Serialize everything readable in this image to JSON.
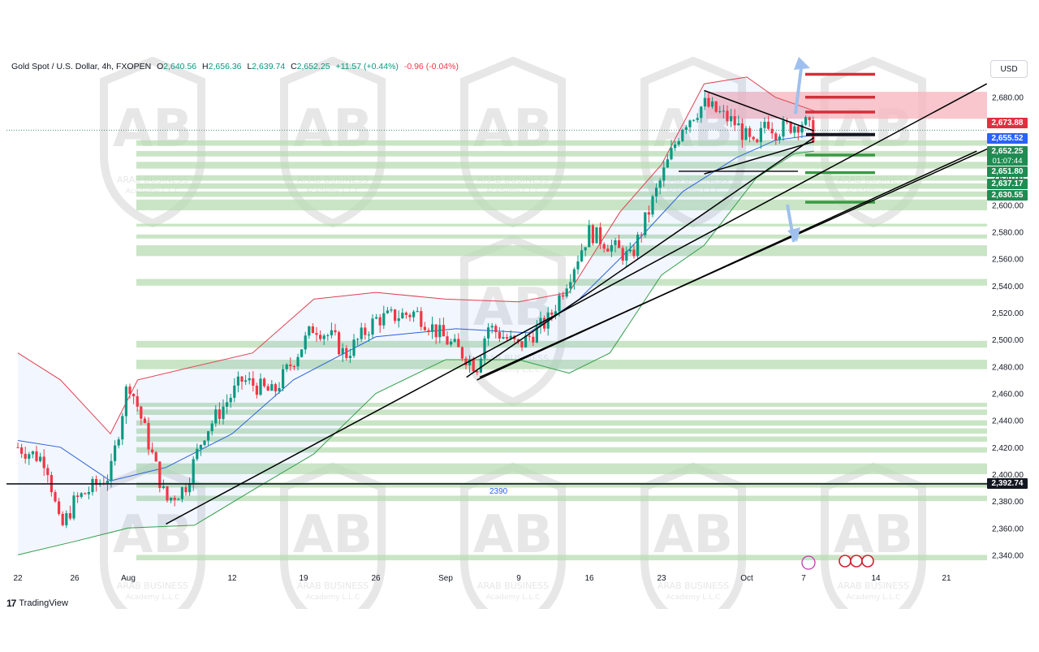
{
  "header": {
    "symbol": "Gold Spot / U.S. Dollar, 4h, FXOPEN",
    "open_label": "O",
    "open": "2,640.56",
    "high_label": "H",
    "high": "2,656.36",
    "low_label": "L",
    "low": "2,639.74",
    "close_label": "C",
    "close": "2,652.25",
    "change": "+11.57 (+0.44%)",
    "spread": "-0.96 (-0.04%)"
  },
  "currency_button": "USD",
  "price_tags": [
    {
      "value": "2,673.88",
      "color": "#e03040"
    },
    {
      "value": "2,655.52",
      "color": "#2962ff"
    },
    {
      "value": "2,652.25",
      "color": "#1f8c52"
    },
    {
      "value": "2,651.80",
      "color": "#1f8c52"
    },
    {
      "value": "2,637.17",
      "color": "#1f8c52"
    },
    {
      "value": "2,630.55",
      "color": "#1f8c52"
    },
    {
      "value": "2,392.74",
      "color": "#131722"
    }
  ],
  "countdown": "01:07:44",
  "level_label": "2390",
  "watermark": {
    "logo": "AB",
    "line1": "ARAB BUSINESS",
    "line2": "Academy L.L.C"
  },
  "branding": "TradingView",
  "colors": {
    "up": "#089981",
    "down": "#f23645",
    "bb_upper": "#e04050",
    "bb_lower": "#33a04a",
    "bb_basis": "#2a62d9",
    "support_zone": "#b7dcb2",
    "resistance_zone": "#f6b8bf"
  },
  "chart_data": {
    "type": "candlestick",
    "title": "Gold Spot / U.S. Dollar, 4h, FXOPEN",
    "timeframe": "4h",
    "ylim": [
      2330,
      2710
    ],
    "y_ticks": [
      2340,
      2360,
      2380,
      2400,
      2420,
      2440,
      2460,
      2480,
      2500,
      2520,
      2540,
      2560,
      2580,
      2600,
      2620,
      2640,
      2660,
      2680,
      2700
    ],
    "y_tick_labels": [
      "2,340.00",
      "2,360.00",
      "2,380.00",
      "2,400.00",
      "2,420.00",
      "2,440.00",
      "2,460.00",
      "2,480.00",
      "2,500.00",
      "2,520.00",
      "2,540.00",
      "2,560.00",
      "2,580.00",
      "2,600.00",
      "2,620.00",
      "2,640.00",
      "2,660.00",
      "2,680.00",
      "2,700.00"
    ],
    "x_ticks": [
      "2024-07-22",
      "2024-07-26",
      "2024-08-01",
      "2024-08-12",
      "2024-08-19",
      "2024-08-26",
      "2024-09-02",
      "2024-09-09",
      "2024-09-16",
      "2024-09-23",
      "2024-10-01",
      "2024-10-07",
      "2024-10-14",
      "2024-10-21"
    ],
    "x_tick_labels": [
      "22",
      "26",
      "Aug",
      "12",
      "19",
      "26",
      "Sep",
      "9",
      "16",
      "23",
      "Oct",
      "7",
      "14",
      "21"
    ],
    "price_path": [
      [
        "2024-07-22",
        2420
      ],
      [
        "2024-07-24",
        2410
      ],
      [
        "2024-07-25",
        2358
      ],
      [
        "2024-07-26",
        2380
      ],
      [
        "2024-07-30",
        2400
      ],
      [
        "2024-08-01",
        2470
      ],
      [
        "2024-08-02",
        2450
      ],
      [
        "2024-08-05",
        2380
      ],
      [
        "2024-08-07",
        2390
      ],
      [
        "2024-08-09",
        2430
      ],
      [
        "2024-08-13",
        2470
      ],
      [
        "2024-08-16",
        2460
      ],
      [
        "2024-08-20",
        2510
      ],
      [
        "2024-08-22",
        2500
      ],
      [
        "2024-08-23",
        2488
      ],
      [
        "2024-08-26",
        2515
      ],
      [
        "2024-08-30",
        2520
      ],
      [
        "2024-09-02",
        2500
      ],
      [
        "2024-09-05",
        2480
      ],
      [
        "2024-09-06",
        2510
      ],
      [
        "2024-09-09",
        2495
      ],
      [
        "2024-09-12",
        2515
      ],
      [
        "2024-09-16",
        2580
      ],
      [
        "2024-09-18",
        2570
      ],
      [
        "2024-09-20",
        2560
      ],
      [
        "2024-09-23",
        2620
      ],
      [
        "2024-09-25",
        2660
      ],
      [
        "2024-09-27",
        2675
      ],
      [
        "2024-09-30",
        2660
      ],
      [
        "2024-10-02",
        2640
      ],
      [
        "2024-10-03",
        2665
      ],
      [
        "2024-10-04",
        2655
      ],
      [
        "2024-10-07",
        2662
      ],
      [
        "2024-10-08",
        2652
      ]
    ],
    "bollinger_upper": [
      [
        "2024-07-22",
        2490
      ],
      [
        "2024-07-25",
        2470
      ],
      [
        "2024-07-30",
        2430
      ],
      [
        "2024-08-02",
        2470
      ],
      [
        "2024-08-08",
        2480
      ],
      [
        "2024-08-14",
        2490
      ],
      [
        "2024-08-20",
        2530
      ],
      [
        "2024-08-26",
        2535
      ],
      [
        "2024-09-02",
        2530
      ],
      [
        "2024-09-09",
        2528
      ],
      [
        "2024-09-14",
        2535
      ],
      [
        "2024-09-19",
        2595
      ],
      [
        "2024-09-23",
        2630
      ],
      [
        "2024-09-27",
        2690
      ],
      [
        "2024-10-01",
        2695
      ],
      [
        "2024-10-04",
        2680
      ],
      [
        "2024-10-08",
        2670
      ]
    ],
    "bollinger_basis": [
      [
        "2024-07-22",
        2425
      ],
      [
        "2024-07-25",
        2420
      ],
      [
        "2024-07-30",
        2395
      ],
      [
        "2024-08-05",
        2405
      ],
      [
        "2024-08-12",
        2430
      ],
      [
        "2024-08-18",
        2470
      ],
      [
        "2024-08-26",
        2502
      ],
      [
        "2024-09-03",
        2508
      ],
      [
        "2024-09-10",
        2505
      ],
      [
        "2024-09-15",
        2530
      ],
      [
        "2024-09-20",
        2568
      ],
      [
        "2024-09-25",
        2610
      ],
      [
        "2024-09-30",
        2635
      ],
      [
        "2024-10-04",
        2648
      ],
      [
        "2024-10-08",
        2652
      ]
    ],
    "bollinger_lower": [
      [
        "2024-07-22",
        2340
      ],
      [
        "2024-07-26",
        2350
      ],
      [
        "2024-08-01",
        2360
      ],
      [
        "2024-08-08",
        2362
      ],
      [
        "2024-08-14",
        2388
      ],
      [
        "2024-08-20",
        2415
      ],
      [
        "2024-08-26",
        2460
      ],
      [
        "2024-09-02",
        2485
      ],
      [
        "2024-09-09",
        2485
      ],
      [
        "2024-09-14",
        2475
      ],
      [
        "2024-09-18",
        2490
      ],
      [
        "2024-09-23",
        2548
      ],
      [
        "2024-09-27",
        2570
      ],
      [
        "2024-10-02",
        2620
      ],
      [
        "2024-10-06",
        2638
      ],
      [
        "2024-10-08",
        2640
      ]
    ],
    "trendlines": [
      {
        "from": [
          "2024-08-05",
          2363
        ],
        "to": [
          "2024-10-25",
          2690
        ]
      },
      {
        "from": [
          "2024-09-04",
          2472
        ],
        "to": [
          "2024-10-08",
          2650
        ]
      },
      {
        "from": [
          "2024-09-05",
          2470
        ],
        "to": [
          "2024-10-24",
          2640
        ]
      },
      {
        "from": [
          "2024-09-27",
          2685
        ],
        "to": [
          "2024-10-08",
          2655
        ]
      },
      {
        "from": [
          "2024-09-27",
          2623
        ],
        "to": [
          "2024-10-08",
          2647
        ]
      }
    ],
    "horizontal_levels": [
      {
        "price": 2392.74,
        "color": "#131722",
        "label": "2390"
      },
      {
        "price": 2652.25,
        "color": "#131722"
      }
    ],
    "support_zones": [
      [
        2336,
        2340
      ],
      [
        2380,
        2384
      ],
      [
        2390,
        2394
      ],
      [
        2400,
        2408
      ],
      [
        2416,
        2420
      ],
      [
        2424,
        2428
      ],
      [
        2430,
        2434
      ],
      [
        2436,
        2440
      ],
      [
        2444,
        2448
      ],
      [
        2450,
        2453
      ],
      [
        2478,
        2485
      ],
      [
        2494,
        2499
      ],
      [
        2540,
        2545
      ],
      [
        2562,
        2570
      ],
      [
        2575,
        2578
      ],
      [
        2584,
        2586
      ],
      [
        2596,
        2604
      ],
      [
        2606,
        2610
      ],
      [
        2612,
        2616
      ],
      [
        2618,
        2622
      ],
      [
        2627,
        2632
      ],
      [
        2636,
        2640
      ],
      [
        2644,
        2648
      ]
    ],
    "resistance_zones": [
      [
        2664,
        2684
      ]
    ],
    "target_levels": [
      {
        "price": 2697,
        "color": "#d32f3a"
      },
      {
        "price": 2680,
        "color": "#d32f3a"
      },
      {
        "price": 2669,
        "color": "#d32f3a"
      },
      {
        "price": 2637,
        "color": "#3a9a44"
      },
      {
        "price": 2624,
        "color": "#3a9a44"
      },
      {
        "price": 2602,
        "color": "#3a9a44"
      }
    ]
  }
}
